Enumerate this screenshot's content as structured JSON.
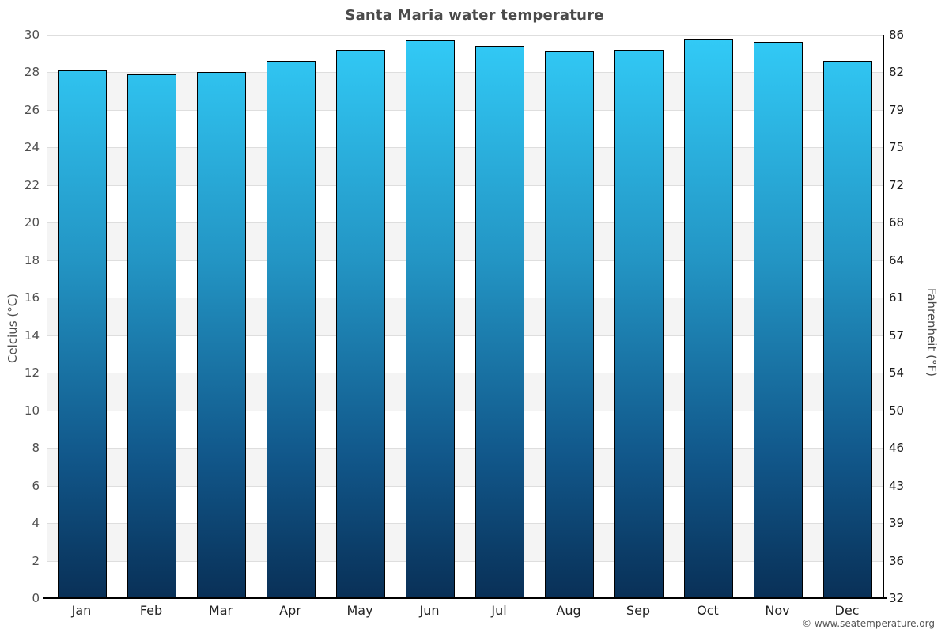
{
  "title": "Santa Maria water temperature",
  "footer": "© www.seatemperature.org",
  "axes": {
    "left_title": "Celcius (°C)",
    "right_title": "Fahrenheit (°F)"
  },
  "colors": {
    "bar_gradient_top": "#32cbf7",
    "bar_gradient_bottom": "#093057",
    "bar_border": "#000000",
    "band_gray": "#f4f4f4",
    "gridline": "#dedede",
    "title_text": "#4a4a4a",
    "left_label_text": "#4f4f4f",
    "right_label_text": "#1a1a1a"
  },
  "chart_data": {
    "type": "bar",
    "title": "Santa Maria water temperature",
    "categories": [
      "Jan",
      "Feb",
      "Mar",
      "Apr",
      "May",
      "Jun",
      "Jul",
      "Aug",
      "Sep",
      "Oct",
      "Nov",
      "Dec"
    ],
    "values": [
      28.1,
      27.9,
      28.0,
      28.6,
      29.2,
      29.7,
      29.4,
      29.1,
      29.2,
      29.8,
      29.6,
      28.6
    ],
    "series_name": "Water temperature (°C)",
    "xlabel": "",
    "ylabel_left": "Celcius (°C)",
    "ylabel_right": "Fahrenheit (°F)",
    "ylim_celsius": [
      0,
      30
    ],
    "yticks_celsius": [
      0,
      2,
      4,
      6,
      8,
      10,
      12,
      14,
      16,
      18,
      20,
      22,
      24,
      26,
      28,
      30
    ],
    "yticks_fahrenheit": [
      32,
      36,
      39,
      43,
      46,
      50,
      54,
      57,
      61,
      64,
      68,
      72,
      75,
      79,
      82,
      86
    ],
    "grid": "horizontal gridlines every 2°C with alternating gray bands",
    "legend": "none"
  }
}
